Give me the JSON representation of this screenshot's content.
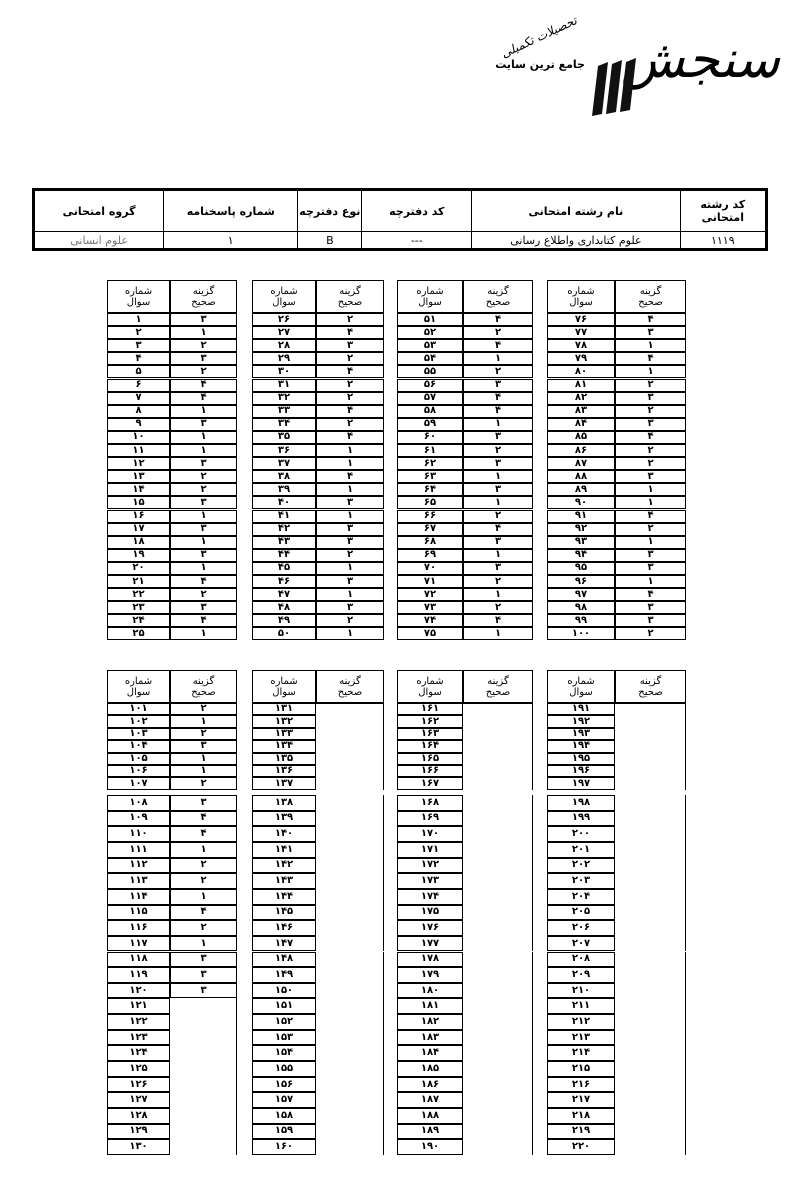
{
  "logo": {
    "word": "سنجش",
    "tagline": "جامع ترین سایت",
    "tagline_script": "تحصیلات تکمیلی"
  },
  "header": {
    "columns": [
      "کد رشته امتحانی",
      "نام رشته امتحانی",
      "کد دفترچه",
      "نوع دفترچه",
      "شماره پاسخنامه",
      "گروه امتحانی"
    ],
    "values": [
      "۱۱۱۹",
      "علوم کتابداری واطلاع رسانی",
      "---",
      "B",
      "۱",
      "علوم انسانی"
    ]
  },
  "col_headers": {
    "question": "شماره سوال",
    "answer": "گزینه صحیح"
  },
  "table1": [
    {
      "q": [
        "۱",
        "۲",
        "۳",
        "۴",
        "۵",
        "۶",
        "۷",
        "۸",
        "۹",
        "۱۰",
        "۱۱",
        "۱۲",
        "۱۳",
        "۱۴",
        "۱۵",
        "۱۶",
        "۱۷",
        "۱۸",
        "۱۹",
        "۲۰",
        "۲۱",
        "۲۲",
        "۲۳",
        "۲۴",
        "۲۵"
      ],
      "a": [
        "۳",
        "۱",
        "۲",
        "۳",
        "۲",
        "۴",
        "۴",
        "۱",
        "۳",
        "۱",
        "۱",
        "۳",
        "۲",
        "۲",
        "۳",
        "۱",
        "۳",
        "۱",
        "۳",
        "۱",
        "۴",
        "۲",
        "۳",
        "۴",
        "۱"
      ]
    },
    {
      "q": [
        "۲۶",
        "۲۷",
        "۲۸",
        "۲۹",
        "۳۰",
        "۳۱",
        "۳۲",
        "۳۳",
        "۳۴",
        "۳۵",
        "۳۶",
        "۳۷",
        "۳۸",
        "۳۹",
        "۴۰",
        "۴۱",
        "۴۲",
        "۴۳",
        "۴۴",
        "۴۵",
        "۴۶",
        "۴۷",
        "۴۸",
        "۴۹",
        "۵۰"
      ],
      "a": [
        "۲",
        "۴",
        "۳",
        "۲",
        "۴",
        "۲",
        "۲",
        "۴",
        "۲",
        "۴",
        "۱",
        "۱",
        "۴",
        "۱",
        "۳",
        "۱",
        "۳",
        "۳",
        "۲",
        "۱",
        "۳",
        "۱",
        "۳",
        "۲",
        "۱"
      ]
    },
    {
      "q": [
        "۵۱",
        "۵۲",
        "۵۳",
        "۵۴",
        "۵۵",
        "۵۶",
        "۵۷",
        "۵۸",
        "۵۹",
        "۶۰",
        "۶۱",
        "۶۲",
        "۶۳",
        "۶۴",
        "۶۵",
        "۶۶",
        "۶۷",
        "۶۸",
        "۶۹",
        "۷۰",
        "۷۱",
        "۷۲",
        "۷۳",
        "۷۴",
        "۷۵"
      ],
      "a": [
        "۴",
        "۲",
        "۴",
        "۱",
        "۲",
        "۳",
        "۴",
        "۴",
        "۱",
        "۳",
        "۲",
        "۳",
        "۱",
        "۳",
        "۱",
        "۲",
        "۴",
        "۳",
        "۱",
        "۳",
        "۲",
        "۱",
        "۲",
        "۴",
        "۱"
      ]
    },
    {
      "q": [
        "۷۶",
        "۷۷",
        "۷۸",
        "۷۹",
        "۸۰",
        "۸۱",
        "۸۲",
        "۸۳",
        "۸۴",
        "۸۵",
        "۸۶",
        "۸۷",
        "۸۸",
        "۸۹",
        "۹۰",
        "۹۱",
        "۹۲",
        "۹۳",
        "۹۴",
        "۹۵",
        "۹۶",
        "۹۷",
        "۹۸",
        "۹۹",
        "۱۰۰"
      ],
      "a": [
        "۴",
        "۳",
        "۱",
        "۴",
        "۱",
        "۲",
        "۳",
        "۲",
        "۳",
        "۴",
        "۲",
        "۲",
        "۳",
        "۱",
        "۱",
        "۴",
        "۲",
        "۱",
        "۳",
        "۳",
        "۱",
        "۴",
        "۳",
        "۳",
        "۲"
      ]
    }
  ],
  "table2": [
    {
      "q": [
        "۱۰۱",
        "۱۰۲",
        "۱۰۳",
        "۱۰۴",
        "۱۰۵",
        "۱۰۶",
        "۱۰۷",
        "۱۰۸",
        "۱۰۹",
        "۱۱۰",
        "۱۱۱",
        "۱۱۲",
        "۱۱۳",
        "۱۱۴",
        "۱۱۵",
        "۱۱۶",
        "۱۱۷",
        "۱۱۸",
        "۱۱۹",
        "۱۲۰",
        "۱۲۱",
        "۱۲۲",
        "۱۲۳",
        "۱۲۴",
        "۱۲۵",
        "۱۲۶",
        "۱۲۷",
        "۱۲۸",
        "۱۲۹",
        "۱۳۰"
      ],
      "a": [
        "۲",
        "۱",
        "۲",
        "۳",
        "۱",
        "۱",
        "۲",
        "۳",
        "۴",
        "۴",
        "۱",
        "۲",
        "۲",
        "۱",
        "۴",
        "۲",
        "۱",
        "۳",
        "۳",
        "۳"
      ]
    },
    {
      "q": [
        "۱۳۱",
        "۱۳۲",
        "۱۳۳",
        "۱۳۴",
        "۱۳۵",
        "۱۳۶",
        "۱۳۷",
        "۱۳۸",
        "۱۳۹",
        "۱۴۰",
        "۱۴۱",
        "۱۴۲",
        "۱۴۳",
        "۱۴۴",
        "۱۴۵",
        "۱۴۶",
        "۱۴۷",
        "۱۴۸",
        "۱۴۹",
        "۱۵۰",
        "۱۵۱",
        "۱۵۲",
        "۱۵۳",
        "۱۵۴",
        "۱۵۵",
        "۱۵۶",
        "۱۵۷",
        "۱۵۸",
        "۱۵۹",
        "۱۶۰"
      ],
      "a": []
    },
    {
      "q": [
        "۱۶۱",
        "۱۶۲",
        "۱۶۳",
        "۱۶۴",
        "۱۶۵",
        "۱۶۶",
        "۱۶۷",
        "۱۶۸",
        "۱۶۹",
        "۱۷۰",
        "۱۷۱",
        "۱۷۲",
        "۱۷۳",
        "۱۷۴",
        "۱۷۵",
        "۱۷۶",
        "۱۷۷",
        "۱۷۸",
        "۱۷۹",
        "۱۸۰",
        "۱۸۱",
        "۱۸۲",
        "۱۸۳",
        "۱۸۴",
        "۱۸۵",
        "۱۸۶",
        "۱۸۷",
        "۱۸۸",
        "۱۸۹",
        "۱۹۰"
      ],
      "a": []
    },
    {
      "q": [
        "۱۹۱",
        "۱۹۲",
        "۱۹۳",
        "۱۹۴",
        "۱۹۵",
        "۱۹۶",
        "۱۹۷",
        "۱۹۸",
        "۱۹۹",
        "۲۰۰",
        "۲۰۱",
        "۲۰۲",
        "۲۰۳",
        "۲۰۴",
        "۲۰۵",
        "۲۰۶",
        "۲۰۷",
        "۲۰۸",
        "۲۰۹",
        "۲۱۰",
        "۲۱۱",
        "۲۱۲",
        "۲۱۳",
        "۲۱۴",
        "۲۱۵",
        "۲۱۶",
        "۲۱۷",
        "۲۱۸",
        "۲۱۹",
        "۲۲۰"
      ],
      "a": []
    }
  ]
}
